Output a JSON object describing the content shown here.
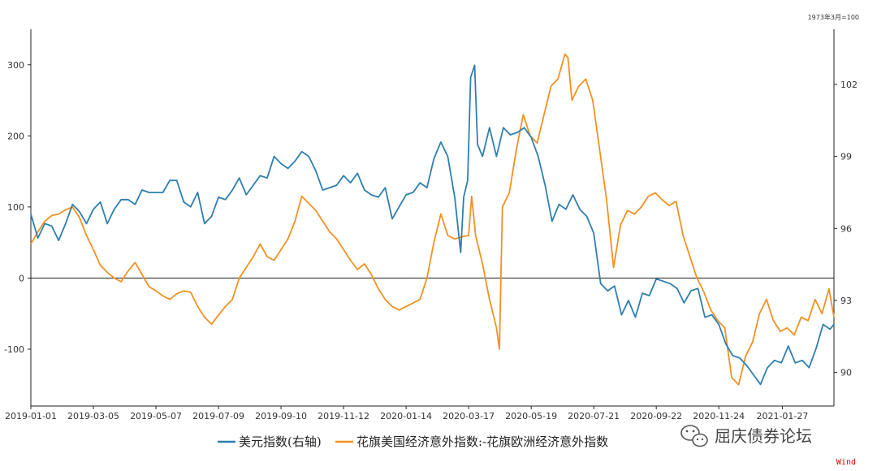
{
  "chart_data": {
    "type": "line",
    "right_axis_note": "1973年3月=100",
    "x_ticks": [
      "2019-01-01",
      "2019-03-05",
      "2019-05-07",
      "2019-07-09",
      "2019-09-10",
      "2019-11-12",
      "2020-01-14",
      "2020-03-17",
      "2020-05-19",
      "2020-07-21",
      "2020-09-22",
      "2020-11-24",
      "2021-01-27"
    ],
    "x_range": [
      "2019-01-01",
      "2021-03-20"
    ],
    "left_axis": {
      "ticks": [
        300,
        200,
        100,
        0,
        -100
      ],
      "ylim": [
        -180,
        350
      ]
    },
    "right_axis": {
      "ticks": [
        102,
        99,
        96,
        93,
        90
      ],
      "ylim": [
        88.6,
        104.3
      ]
    },
    "zero_line": true,
    "legend_position": "bottom",
    "series": [
      {
        "name": "美元指数(右轴)",
        "axis": "right",
        "color": "#2e7fae",
        "points": [
          [
            "2019-01-01",
            96.6
          ],
          [
            "2019-01-08",
            95.6
          ],
          [
            "2019-01-15",
            96.2
          ],
          [
            "2019-01-22",
            96.1
          ],
          [
            "2019-01-29",
            95.5
          ],
          [
            "2019-02-05",
            96.2
          ],
          [
            "2019-02-12",
            97.0
          ],
          [
            "2019-02-19",
            96.7
          ],
          [
            "2019-02-26",
            96.2
          ],
          [
            "2019-03-05",
            96.8
          ],
          [
            "2019-03-12",
            97.1
          ],
          [
            "2019-03-19",
            96.2
          ],
          [
            "2019-03-26",
            96.8
          ],
          [
            "2019-04-02",
            97.2
          ],
          [
            "2019-04-09",
            97.2
          ],
          [
            "2019-04-16",
            97.0
          ],
          [
            "2019-04-23",
            97.6
          ],
          [
            "2019-04-30",
            97.5
          ],
          [
            "2019-05-07",
            97.5
          ],
          [
            "2019-05-14",
            97.5
          ],
          [
            "2019-05-21",
            98.0
          ],
          [
            "2019-05-28",
            98.0
          ],
          [
            "2019-06-04",
            97.1
          ],
          [
            "2019-06-11",
            96.9
          ],
          [
            "2019-06-18",
            97.5
          ],
          [
            "2019-06-25",
            96.2
          ],
          [
            "2019-07-02",
            96.5
          ],
          [
            "2019-07-09",
            97.3
          ],
          [
            "2019-07-16",
            97.2
          ],
          [
            "2019-07-23",
            97.6
          ],
          [
            "2019-07-30",
            98.1
          ],
          [
            "2019-08-06",
            97.4
          ],
          [
            "2019-08-13",
            97.8
          ],
          [
            "2019-08-20",
            98.2
          ],
          [
            "2019-08-27",
            98.1
          ],
          [
            "2019-09-03",
            99.0
          ],
          [
            "2019-09-10",
            98.7
          ],
          [
            "2019-09-17",
            98.5
          ],
          [
            "2019-09-24",
            98.8
          ],
          [
            "2019-10-01",
            99.2
          ],
          [
            "2019-10-08",
            99.0
          ],
          [
            "2019-10-15",
            98.4
          ],
          [
            "2019-10-22",
            97.6
          ],
          [
            "2019-10-29",
            97.7
          ],
          [
            "2019-11-05",
            97.8
          ],
          [
            "2019-11-12",
            98.2
          ],
          [
            "2019-11-19",
            97.9
          ],
          [
            "2019-11-26",
            98.3
          ],
          [
            "2019-12-03",
            97.6
          ],
          [
            "2019-12-10",
            97.4
          ],
          [
            "2019-12-17",
            97.3
          ],
          [
            "2019-12-24",
            97.7
          ],
          [
            "2019-12-31",
            96.4
          ],
          [
            "2020-01-07",
            96.9
          ],
          [
            "2020-01-14",
            97.4
          ],
          [
            "2020-01-21",
            97.5
          ],
          [
            "2020-01-28",
            97.9
          ],
          [
            "2020-02-04",
            97.7
          ],
          [
            "2020-02-11",
            98.9
          ],
          [
            "2020-02-18",
            99.6
          ],
          [
            "2020-02-25",
            99.0
          ],
          [
            "2020-03-03",
            97.3
          ],
          [
            "2020-03-09",
            95.0
          ],
          [
            "2020-03-12",
            97.3
          ],
          [
            "2020-03-16",
            98.0
          ],
          [
            "2020-03-19",
            102.3
          ],
          [
            "2020-03-23",
            102.8
          ],
          [
            "2020-03-26",
            99.5
          ],
          [
            "2020-03-31",
            99.0
          ],
          [
            "2020-04-07",
            100.2
          ],
          [
            "2020-04-14",
            99.0
          ],
          [
            "2020-04-21",
            100.2
          ],
          [
            "2020-04-28",
            99.9
          ],
          [
            "2020-05-05",
            100.0
          ],
          [
            "2020-05-12",
            100.2
          ],
          [
            "2020-05-19",
            99.8
          ],
          [
            "2020-05-26",
            99.0
          ],
          [
            "2020-06-02",
            97.8
          ],
          [
            "2020-06-09",
            96.3
          ],
          [
            "2020-06-16",
            97.0
          ],
          [
            "2020-06-23",
            96.8
          ],
          [
            "2020-06-30",
            97.4
          ],
          [
            "2020-07-07",
            96.8
          ],
          [
            "2020-07-14",
            96.5
          ],
          [
            "2020-07-21",
            95.8
          ],
          [
            "2020-07-28",
            93.7
          ],
          [
            "2020-08-04",
            93.4
          ],
          [
            "2020-08-11",
            93.6
          ],
          [
            "2020-08-18",
            92.4
          ],
          [
            "2020-08-25",
            93.0
          ],
          [
            "2020-09-01",
            92.3
          ],
          [
            "2020-09-08",
            93.3
          ],
          [
            "2020-09-15",
            93.2
          ],
          [
            "2020-09-22",
            93.9
          ],
          [
            "2020-09-29",
            93.8
          ],
          [
            "2020-10-06",
            93.7
          ],
          [
            "2020-10-13",
            93.5
          ],
          [
            "2020-10-20",
            92.9
          ],
          [
            "2020-10-27",
            93.4
          ],
          [
            "2020-11-03",
            93.5
          ],
          [
            "2020-11-10",
            92.3
          ],
          [
            "2020-11-17",
            92.4
          ],
          [
            "2020-11-24",
            92.0
          ],
          [
            "2020-12-01",
            91.2
          ],
          [
            "2020-12-08",
            90.7
          ],
          [
            "2020-12-15",
            90.6
          ],
          [
            "2020-12-22",
            90.3
          ],
          [
            "2020-12-29",
            89.9
          ],
          [
            "2021-01-05",
            89.5
          ],
          [
            "2021-01-12",
            90.2
          ],
          [
            "2021-01-19",
            90.5
          ],
          [
            "2021-01-26",
            90.4
          ],
          [
            "2021-02-02",
            91.1
          ],
          [
            "2021-02-09",
            90.4
          ],
          [
            "2021-02-16",
            90.5
          ],
          [
            "2021-02-23",
            90.2
          ],
          [
            "2021-03-02",
            91.0
          ],
          [
            "2021-03-09",
            92.0
          ],
          [
            "2021-03-16",
            91.8
          ],
          [
            "2021-03-20",
            92.0
          ]
        ]
      },
      {
        "name": "花旗美国经济意外指数:-花旗欧洲经济意外指数",
        "axis": "left",
        "color": "#f39121",
        "points": [
          [
            "2019-01-01",
            48
          ],
          [
            "2019-01-08",
            65
          ],
          [
            "2019-01-15",
            80
          ],
          [
            "2019-01-22",
            88
          ],
          [
            "2019-01-29",
            90
          ],
          [
            "2019-02-05",
            96
          ],
          [
            "2019-02-12",
            100
          ],
          [
            "2019-02-19",
            85
          ],
          [
            "2019-02-26",
            60
          ],
          [
            "2019-03-05",
            40
          ],
          [
            "2019-03-12",
            18
          ],
          [
            "2019-03-19",
            8
          ],
          [
            "2019-03-26",
            0
          ],
          [
            "2019-04-02",
            -5
          ],
          [
            "2019-04-09",
            10
          ],
          [
            "2019-04-16",
            22
          ],
          [
            "2019-04-23",
            5
          ],
          [
            "2019-04-30",
            -12
          ],
          [
            "2019-05-07",
            -18
          ],
          [
            "2019-05-14",
            -25
          ],
          [
            "2019-05-21",
            -30
          ],
          [
            "2019-05-28",
            -22
          ],
          [
            "2019-06-04",
            -18
          ],
          [
            "2019-06-11",
            -20
          ],
          [
            "2019-06-18",
            -40
          ],
          [
            "2019-06-25",
            -55
          ],
          [
            "2019-07-02",
            -65
          ],
          [
            "2019-07-09",
            -52
          ],
          [
            "2019-07-16",
            -40
          ],
          [
            "2019-07-23",
            -30
          ],
          [
            "2019-07-30",
            0
          ],
          [
            "2019-08-06",
            15
          ],
          [
            "2019-08-13",
            30
          ],
          [
            "2019-08-20",
            48
          ],
          [
            "2019-08-27",
            30
          ],
          [
            "2019-09-03",
            25
          ],
          [
            "2019-09-10",
            40
          ],
          [
            "2019-09-17",
            55
          ],
          [
            "2019-09-24",
            80
          ],
          [
            "2019-10-01",
            115
          ],
          [
            "2019-10-08",
            105
          ],
          [
            "2019-10-15",
            95
          ],
          [
            "2019-10-22",
            80
          ],
          [
            "2019-10-29",
            65
          ],
          [
            "2019-11-05",
            55
          ],
          [
            "2019-11-12",
            40
          ],
          [
            "2019-11-19",
            25
          ],
          [
            "2019-11-26",
            12
          ],
          [
            "2019-12-03",
            20
          ],
          [
            "2019-12-10",
            5
          ],
          [
            "2019-12-17",
            -15
          ],
          [
            "2019-12-24",
            -30
          ],
          [
            "2019-12-31",
            -40
          ],
          [
            "2020-01-07",
            -45
          ],
          [
            "2020-01-14",
            -40
          ],
          [
            "2020-01-21",
            -35
          ],
          [
            "2020-01-28",
            -30
          ],
          [
            "2020-02-04",
            0
          ],
          [
            "2020-02-11",
            50
          ],
          [
            "2020-02-18",
            90
          ],
          [
            "2020-02-25",
            60
          ],
          [
            "2020-03-03",
            55
          ],
          [
            "2020-03-10",
            58
          ],
          [
            "2020-03-17",
            60
          ],
          [
            "2020-03-20",
            115
          ],
          [
            "2020-03-24",
            60
          ],
          [
            "2020-03-31",
            20
          ],
          [
            "2020-04-07",
            -30
          ],
          [
            "2020-04-14",
            -70
          ],
          [
            "2020-04-17",
            -100
          ],
          [
            "2020-04-20",
            100
          ],
          [
            "2020-04-27",
            120
          ],
          [
            "2020-05-04",
            180
          ],
          [
            "2020-05-11",
            230
          ],
          [
            "2020-05-18",
            200
          ],
          [
            "2020-05-25",
            190
          ],
          [
            "2020-06-01",
            230
          ],
          [
            "2020-06-08",
            270
          ],
          [
            "2020-06-15",
            280
          ],
          [
            "2020-06-22",
            315
          ],
          [
            "2020-06-25",
            310
          ],
          [
            "2020-06-29",
            250
          ],
          [
            "2020-07-06",
            270
          ],
          [
            "2020-07-13",
            280
          ],
          [
            "2020-07-20",
            250
          ],
          [
            "2020-07-27",
            180
          ],
          [
            "2020-08-03",
            110
          ],
          [
            "2020-08-10",
            15
          ],
          [
            "2020-08-17",
            75
          ],
          [
            "2020-08-24",
            95
          ],
          [
            "2020-08-31",
            90
          ],
          [
            "2020-09-07",
            100
          ],
          [
            "2020-09-14",
            115
          ],
          [
            "2020-09-21",
            120
          ],
          [
            "2020-09-28",
            110
          ],
          [
            "2020-10-05",
            102
          ],
          [
            "2020-10-12",
            108
          ],
          [
            "2020-10-19",
            60
          ],
          [
            "2020-10-26",
            30
          ],
          [
            "2020-11-02",
            0
          ],
          [
            "2020-11-09",
            -20
          ],
          [
            "2020-11-16",
            -45
          ],
          [
            "2020-11-23",
            -60
          ],
          [
            "2020-11-30",
            -70
          ],
          [
            "2020-12-07",
            -140
          ],
          [
            "2020-12-14",
            -150
          ],
          [
            "2020-12-21",
            -110
          ],
          [
            "2020-12-28",
            -90
          ],
          [
            "2021-01-04",
            -50
          ],
          [
            "2021-01-11",
            -30
          ],
          [
            "2021-01-18",
            -60
          ],
          [
            "2021-01-25",
            -75
          ],
          [
            "2021-02-01",
            -70
          ],
          [
            "2021-02-08",
            -80
          ],
          [
            "2021-02-15",
            -55
          ],
          [
            "2021-02-22",
            -60
          ],
          [
            "2021-03-01",
            -30
          ],
          [
            "2021-03-08",
            -50
          ],
          [
            "2021-03-15",
            -15
          ],
          [
            "2021-03-20",
            -55
          ]
        ]
      }
    ]
  },
  "watermark": {
    "text": "屈庆债券论坛"
  },
  "source": "Wind"
}
